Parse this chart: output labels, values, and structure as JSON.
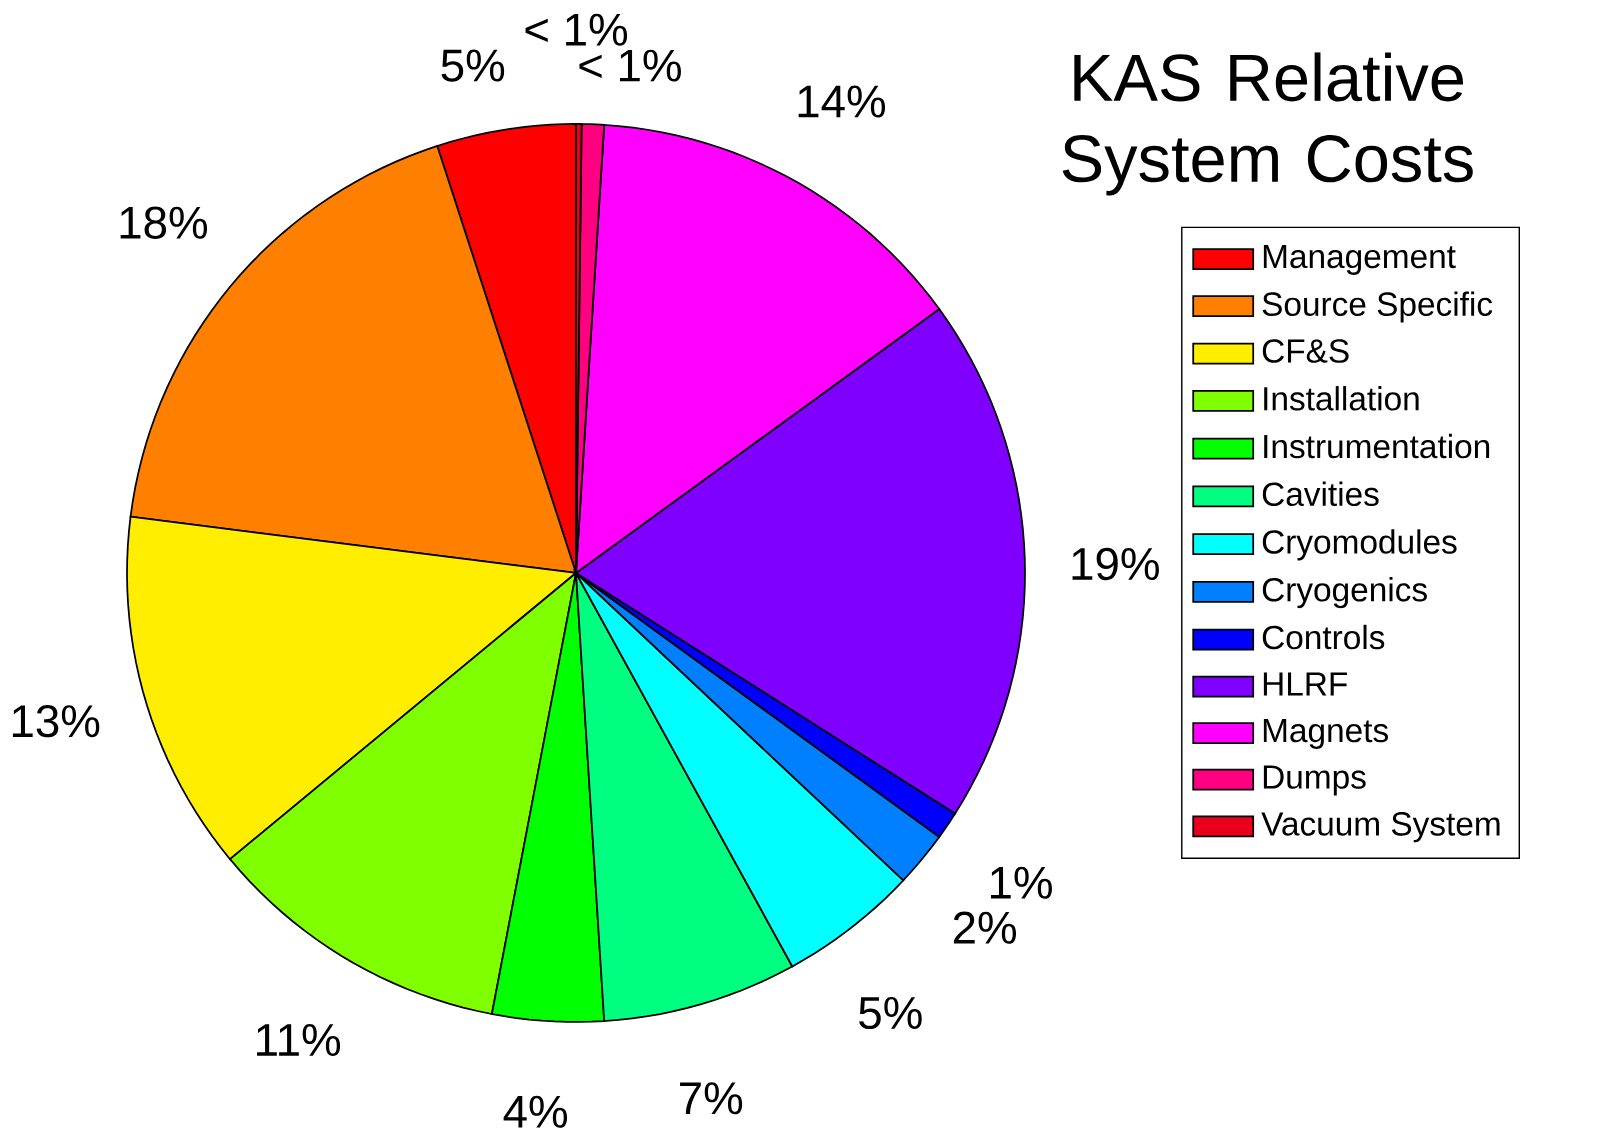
{
  "chart_data": {
    "type": "pie",
    "title": "KAS Relative System Costs",
    "categories": [
      "Management",
      "Source Specific",
      "CF&S",
      "Installation",
      "Instrumentation",
      "Cavities",
      "Cryomodules",
      "Cryogenics",
      "Controls",
      "HLRF",
      "Magnets",
      "Dumps",
      "Vacuum System"
    ],
    "values": [
      5,
      18,
      13,
      11,
      4,
      7,
      5,
      2,
      1,
      19,
      14,
      0.8,
      0.2
    ],
    "value_labels": [
      "5%",
      "18%",
      "13%",
      "11%",
      "4%",
      "7%",
      "5%",
      "2%",
      "1%",
      "19%",
      "14%",
      "< 1%",
      "< 1%"
    ],
    "colors": [
      "#ff0000",
      "#ff8000",
      "#ffee00",
      "#80ff00",
      "#00ff00",
      "#00ff80",
      "#00ffff",
      "#0080ff",
      "#0000ff",
      "#8000ff",
      "#ff00ff",
      "#ff0080",
      "#e8001c"
    ],
    "legend": "right"
  }
}
